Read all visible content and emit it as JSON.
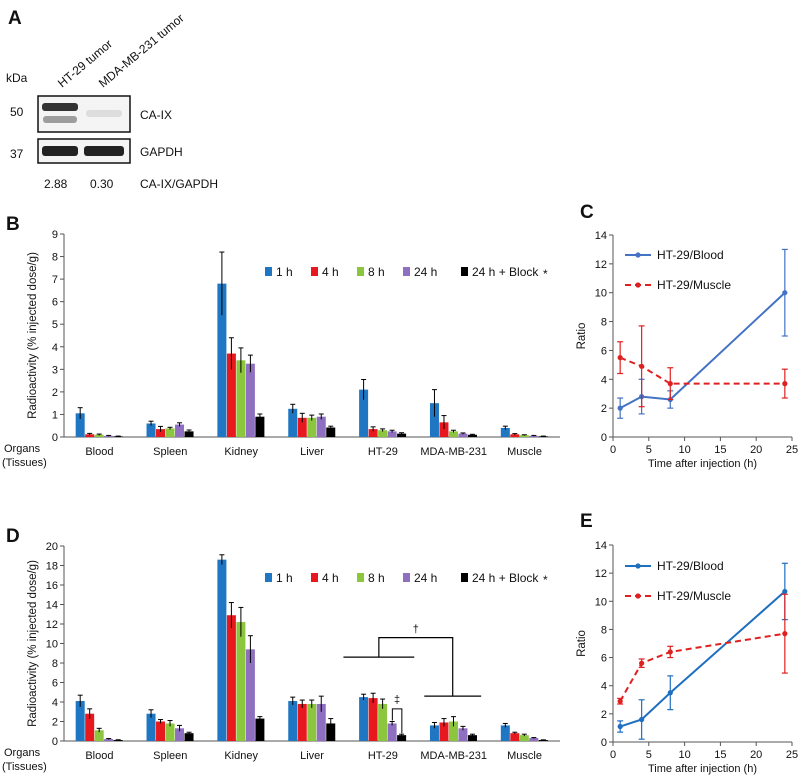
{
  "panel_labels": {
    "A": "A",
    "B": "B",
    "C": "C",
    "D": "D",
    "E": "E"
  },
  "blot": {
    "kda_label": "kDa",
    "lanes": [
      "HT-29 tumor",
      "MDA-MB-231 tumor"
    ],
    "markers": [
      "50",
      "37"
    ],
    "bands": [
      "CA-IX",
      "GAPDH"
    ],
    "ratios": [
      "2.88",
      "0.30"
    ],
    "ratio_label": "CA-IX/GAPDH"
  },
  "colors": {
    "1 h": "#1f77c4",
    "4 h": "#e8191e",
    "8 h": "#8cc63f",
    "24 h": "#8e6fc0",
    "24 h + Block": "#000000",
    "blood_line": "#4472c4",
    "blood_line_e": "#1f6fc0",
    "muscle_line": "#e02020"
  },
  "chart_data": [
    {
      "id": "B",
      "type": "bar",
      "ylabel": "Radioactivity (% injected dose/g)",
      "xlabel_top": "Organs",
      "xlabel_bottom": "(Tissues)",
      "ylim": [
        0,
        9
      ],
      "yticks": [
        "0",
        "1",
        "2",
        "3",
        "4",
        "5",
        "6",
        "7",
        "8",
        "9"
      ],
      "categories": [
        "Blood",
        "Spleen",
        "Kidney",
        "Liver",
        "HT-29",
        "MDA-MB-231",
        "Muscle"
      ],
      "block_mark": "*",
      "series": [
        {
          "name": "1 h",
          "values": [
            1.05,
            0.6,
            6.8,
            1.25,
            2.1,
            1.5,
            0.4
          ],
          "errors": [
            0.25,
            0.1,
            1.4,
            0.2,
            0.45,
            0.6,
            0.08
          ]
        },
        {
          "name": "4 h",
          "values": [
            0.12,
            0.35,
            3.7,
            0.85,
            0.35,
            0.65,
            0.12
          ],
          "errors": [
            0.04,
            0.12,
            0.7,
            0.2,
            0.1,
            0.3,
            0.03
          ]
        },
        {
          "name": "8 h",
          "values": [
            0.1,
            0.38,
            3.4,
            0.85,
            0.3,
            0.25,
            0.08
          ],
          "errors": [
            0.03,
            0.05,
            0.55,
            0.12,
            0.06,
            0.05,
            0.02
          ]
        },
        {
          "name": "24 h",
          "values": [
            0.05,
            0.55,
            3.25,
            0.9,
            0.25,
            0.15,
            0.05
          ],
          "errors": [
            0.02,
            0.08,
            0.38,
            0.12,
            0.05,
            0.03,
            0.02
          ]
        },
        {
          "name": "24 h + Block",
          "values": [
            0.03,
            0.25,
            0.9,
            0.42,
            0.15,
            0.1,
            0.03
          ],
          "errors": [
            0.01,
            0.06,
            0.12,
            0.06,
            0.04,
            0.02,
            0.01
          ]
        }
      ]
    },
    {
      "id": "D",
      "type": "bar",
      "ylabel": "Radioactivity (% injected dose/g)",
      "xlabel_top": "Organs",
      "xlabel_bottom": "(Tissues)",
      "ylim": [
        0,
        20
      ],
      "yticks": [
        "0",
        "2",
        "4",
        "6",
        "8",
        "10",
        "12",
        "14",
        "16",
        "18",
        "20"
      ],
      "categories": [
        "Blood",
        "Spleen",
        "Kidney",
        "Liver",
        "HT-29",
        "MDA-MB-231",
        "Muscle"
      ],
      "block_mark": "*",
      "annotations": {
        "dagger": "†",
        "double_dagger": "‡"
      },
      "series": [
        {
          "name": "1 h",
          "values": [
            4.1,
            2.8,
            18.6,
            4.1,
            4.5,
            1.6,
            1.6
          ],
          "errors": [
            0.6,
            0.4,
            0.5,
            0.4,
            0.3,
            0.3,
            0.2
          ]
        },
        {
          "name": "4 h",
          "values": [
            2.8,
            2.0,
            12.9,
            3.8,
            4.4,
            1.9,
            0.8
          ],
          "errors": [
            0.5,
            0.2,
            1.3,
            0.4,
            0.5,
            0.4,
            0.1
          ]
        },
        {
          "name": "8 h",
          "values": [
            1.1,
            1.8,
            12.2,
            3.8,
            3.8,
            2.0,
            0.6
          ],
          "errors": [
            0.2,
            0.3,
            1.5,
            0.4,
            0.5,
            0.5,
            0.1
          ]
        },
        {
          "name": "24 h",
          "values": [
            0.2,
            1.3,
            9.4,
            3.8,
            1.8,
            1.3,
            0.3
          ],
          "errors": [
            0.05,
            0.3,
            1.4,
            0.8,
            0.2,
            0.2,
            0.05
          ]
        },
        {
          "name": "24 h + Block",
          "values": [
            0.1,
            0.8,
            2.3,
            1.8,
            0.6,
            0.6,
            0.1
          ],
          "errors": [
            0.03,
            0.1,
            0.2,
            0.5,
            0.1,
            0.1,
            0.02
          ]
        }
      ]
    },
    {
      "id": "C",
      "type": "line",
      "xlabel": "Time after injection (h)",
      "ylabel": "Ratio",
      "xlim": [
        0,
        25
      ],
      "ylim": [
        0,
        14
      ],
      "xticks": [
        "0",
        "5",
        "10",
        "15",
        "20",
        "25"
      ],
      "yticks": [
        "0",
        "2",
        "4",
        "6",
        "8",
        "10",
        "12",
        "14"
      ],
      "series": [
        {
          "name": "HT-29/Blood",
          "style": "solid",
          "x": [
            1,
            4,
            8,
            24
          ],
          "y": [
            2.0,
            2.8,
            2.6,
            10.0
          ],
          "errors": [
            0.7,
            1.2,
            0.6,
            3.0
          ]
        },
        {
          "name": "HT-29/Muscle",
          "style": "dashed",
          "x": [
            1,
            4,
            8,
            24
          ],
          "y": [
            5.5,
            4.9,
            3.7,
            3.7
          ],
          "errors": [
            1.1,
            2.8,
            1.1,
            1.0
          ]
        }
      ]
    },
    {
      "id": "E",
      "type": "line",
      "xlabel": "Time after injection (h)",
      "ylabel": "Ratio",
      "xlim": [
        0,
        25
      ],
      "ylim": [
        0,
        14
      ],
      "xticks": [
        "0",
        "5",
        "10",
        "15",
        "20",
        "25"
      ],
      "yticks": [
        "0",
        "2",
        "4",
        "6",
        "8",
        "10",
        "12",
        "14"
      ],
      "series": [
        {
          "name": "HT-29/Blood",
          "style": "solid",
          "x": [
            1,
            4,
            8,
            24
          ],
          "y": [
            1.1,
            1.6,
            3.5,
            10.7
          ],
          "errors": [
            0.4,
            1.4,
            1.2,
            2.0
          ]
        },
        {
          "name": "HT-29/Muscle",
          "style": "dashed",
          "x": [
            1,
            4,
            8,
            24
          ],
          "y": [
            2.9,
            5.6,
            6.4,
            7.7
          ],
          "errors": [
            0.2,
            0.3,
            0.4,
            2.8
          ]
        }
      ]
    }
  ]
}
